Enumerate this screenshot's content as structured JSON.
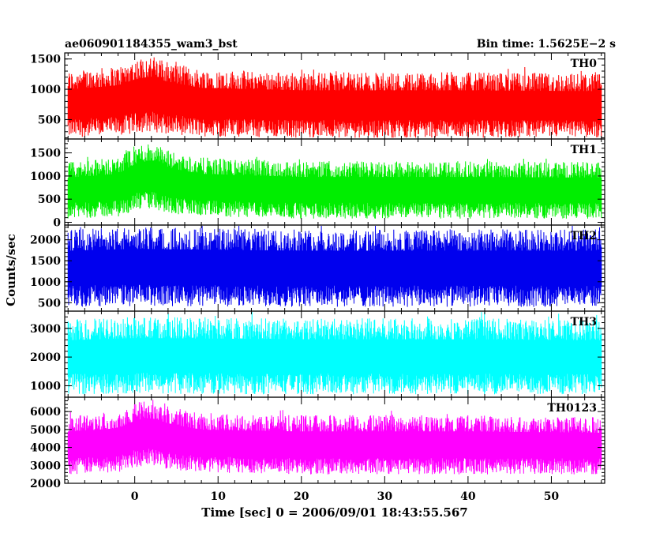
{
  "chart_data": {
    "type": "line",
    "title_left": "ae060901184355_wam3_bst",
    "title_right": "Bin time: 1.5625E−2 s",
    "xlabel": "Time [sec] 0 = 2006/09/01 18:43:55.567",
    "ylabel": "Counts/sec",
    "xlim": [
      -8.4,
      56.4
    ],
    "x_ticks": [
      0,
      10,
      20,
      30,
      40,
      50
    ],
    "x_data_range": [
      -8.0,
      56.0
    ],
    "grid": false,
    "panels": [
      {
        "name": "TH0",
        "color": "#ff0000",
        "ylim": [
          180,
          1600
        ],
        "y_ticks": [
          500,
          1000,
          1500
        ],
        "profile": [
          {
            "x": -8,
            "low": 200,
            "high": 1300
          },
          {
            "x": -2,
            "low": 230,
            "high": 1380
          },
          {
            "x": 0,
            "low": 280,
            "high": 1500
          },
          {
            "x": 2,
            "low": 300,
            "high": 1560
          },
          {
            "x": 4,
            "low": 260,
            "high": 1450
          },
          {
            "x": 8,
            "low": 220,
            "high": 1330
          },
          {
            "x": 20,
            "low": 200,
            "high": 1280
          },
          {
            "x": 40,
            "low": 200,
            "high": 1280
          },
          {
            "x": 56,
            "low": 200,
            "high": 1260
          }
        ]
      },
      {
        "name": "TH1",
        "color": "#00ee00",
        "ylim": [
          -60,
          1800
        ],
        "y_ticks": [
          0,
          500,
          1000,
          1500
        ],
        "profile": [
          {
            "x": -8,
            "low": 80,
            "high": 1300
          },
          {
            "x": -2,
            "low": 120,
            "high": 1400
          },
          {
            "x": 0,
            "low": 250,
            "high": 1650
          },
          {
            "x": 2,
            "low": 280,
            "high": 1750
          },
          {
            "x": 4,
            "low": 200,
            "high": 1550
          },
          {
            "x": 8,
            "low": 120,
            "high": 1400
          },
          {
            "x": 20,
            "low": 80,
            "high": 1320
          },
          {
            "x": 40,
            "low": 80,
            "high": 1320
          },
          {
            "x": 56,
            "low": 80,
            "high": 1300
          }
        ]
      },
      {
        "name": "TH2",
        "color": "#0000ee",
        "ylim": [
          300,
          2350
        ],
        "y_ticks": [
          500,
          1000,
          1500,
          2000
        ],
        "profile": [
          {
            "x": -8,
            "low": 400,
            "high": 2250
          },
          {
            "x": 0,
            "low": 420,
            "high": 2300
          },
          {
            "x": 20,
            "low": 400,
            "high": 2250
          },
          {
            "x": 40,
            "low": 400,
            "high": 2250
          },
          {
            "x": 56,
            "low": 400,
            "high": 2250
          }
        ]
      },
      {
        "name": "TH3",
        "color": "#00ffff",
        "ylim": [
          600,
          3600
        ],
        "y_ticks": [
          1000,
          2000,
          3000
        ],
        "profile": [
          {
            "x": -8,
            "low": 700,
            "high": 3300
          },
          {
            "x": 0,
            "low": 720,
            "high": 3400
          },
          {
            "x": 20,
            "low": 700,
            "high": 3350
          },
          {
            "x": 40,
            "low": 700,
            "high": 3350
          },
          {
            "x": 56,
            "low": 700,
            "high": 3300
          }
        ]
      },
      {
        "name": "TH0123",
        "color": "#ff00ff",
        "ylim": [
          2000,
          6800
        ],
        "y_ticks": [
          2000,
          3000,
          4000,
          5000,
          6000
        ],
        "profile": [
          {
            "x": -8,
            "low": 2500,
            "high": 5800
          },
          {
            "x": -2,
            "low": 2600,
            "high": 6000
          },
          {
            "x": 0,
            "low": 2900,
            "high": 6500
          },
          {
            "x": 2,
            "low": 3000,
            "high": 6700
          },
          {
            "x": 4,
            "low": 2800,
            "high": 6300
          },
          {
            "x": 8,
            "low": 2600,
            "high": 5900
          },
          {
            "x": 20,
            "low": 2500,
            "high": 5800
          },
          {
            "x": 40,
            "low": 2500,
            "high": 5800
          },
          {
            "x": 56,
            "low": 2500,
            "high": 5700
          }
        ]
      }
    ]
  }
}
